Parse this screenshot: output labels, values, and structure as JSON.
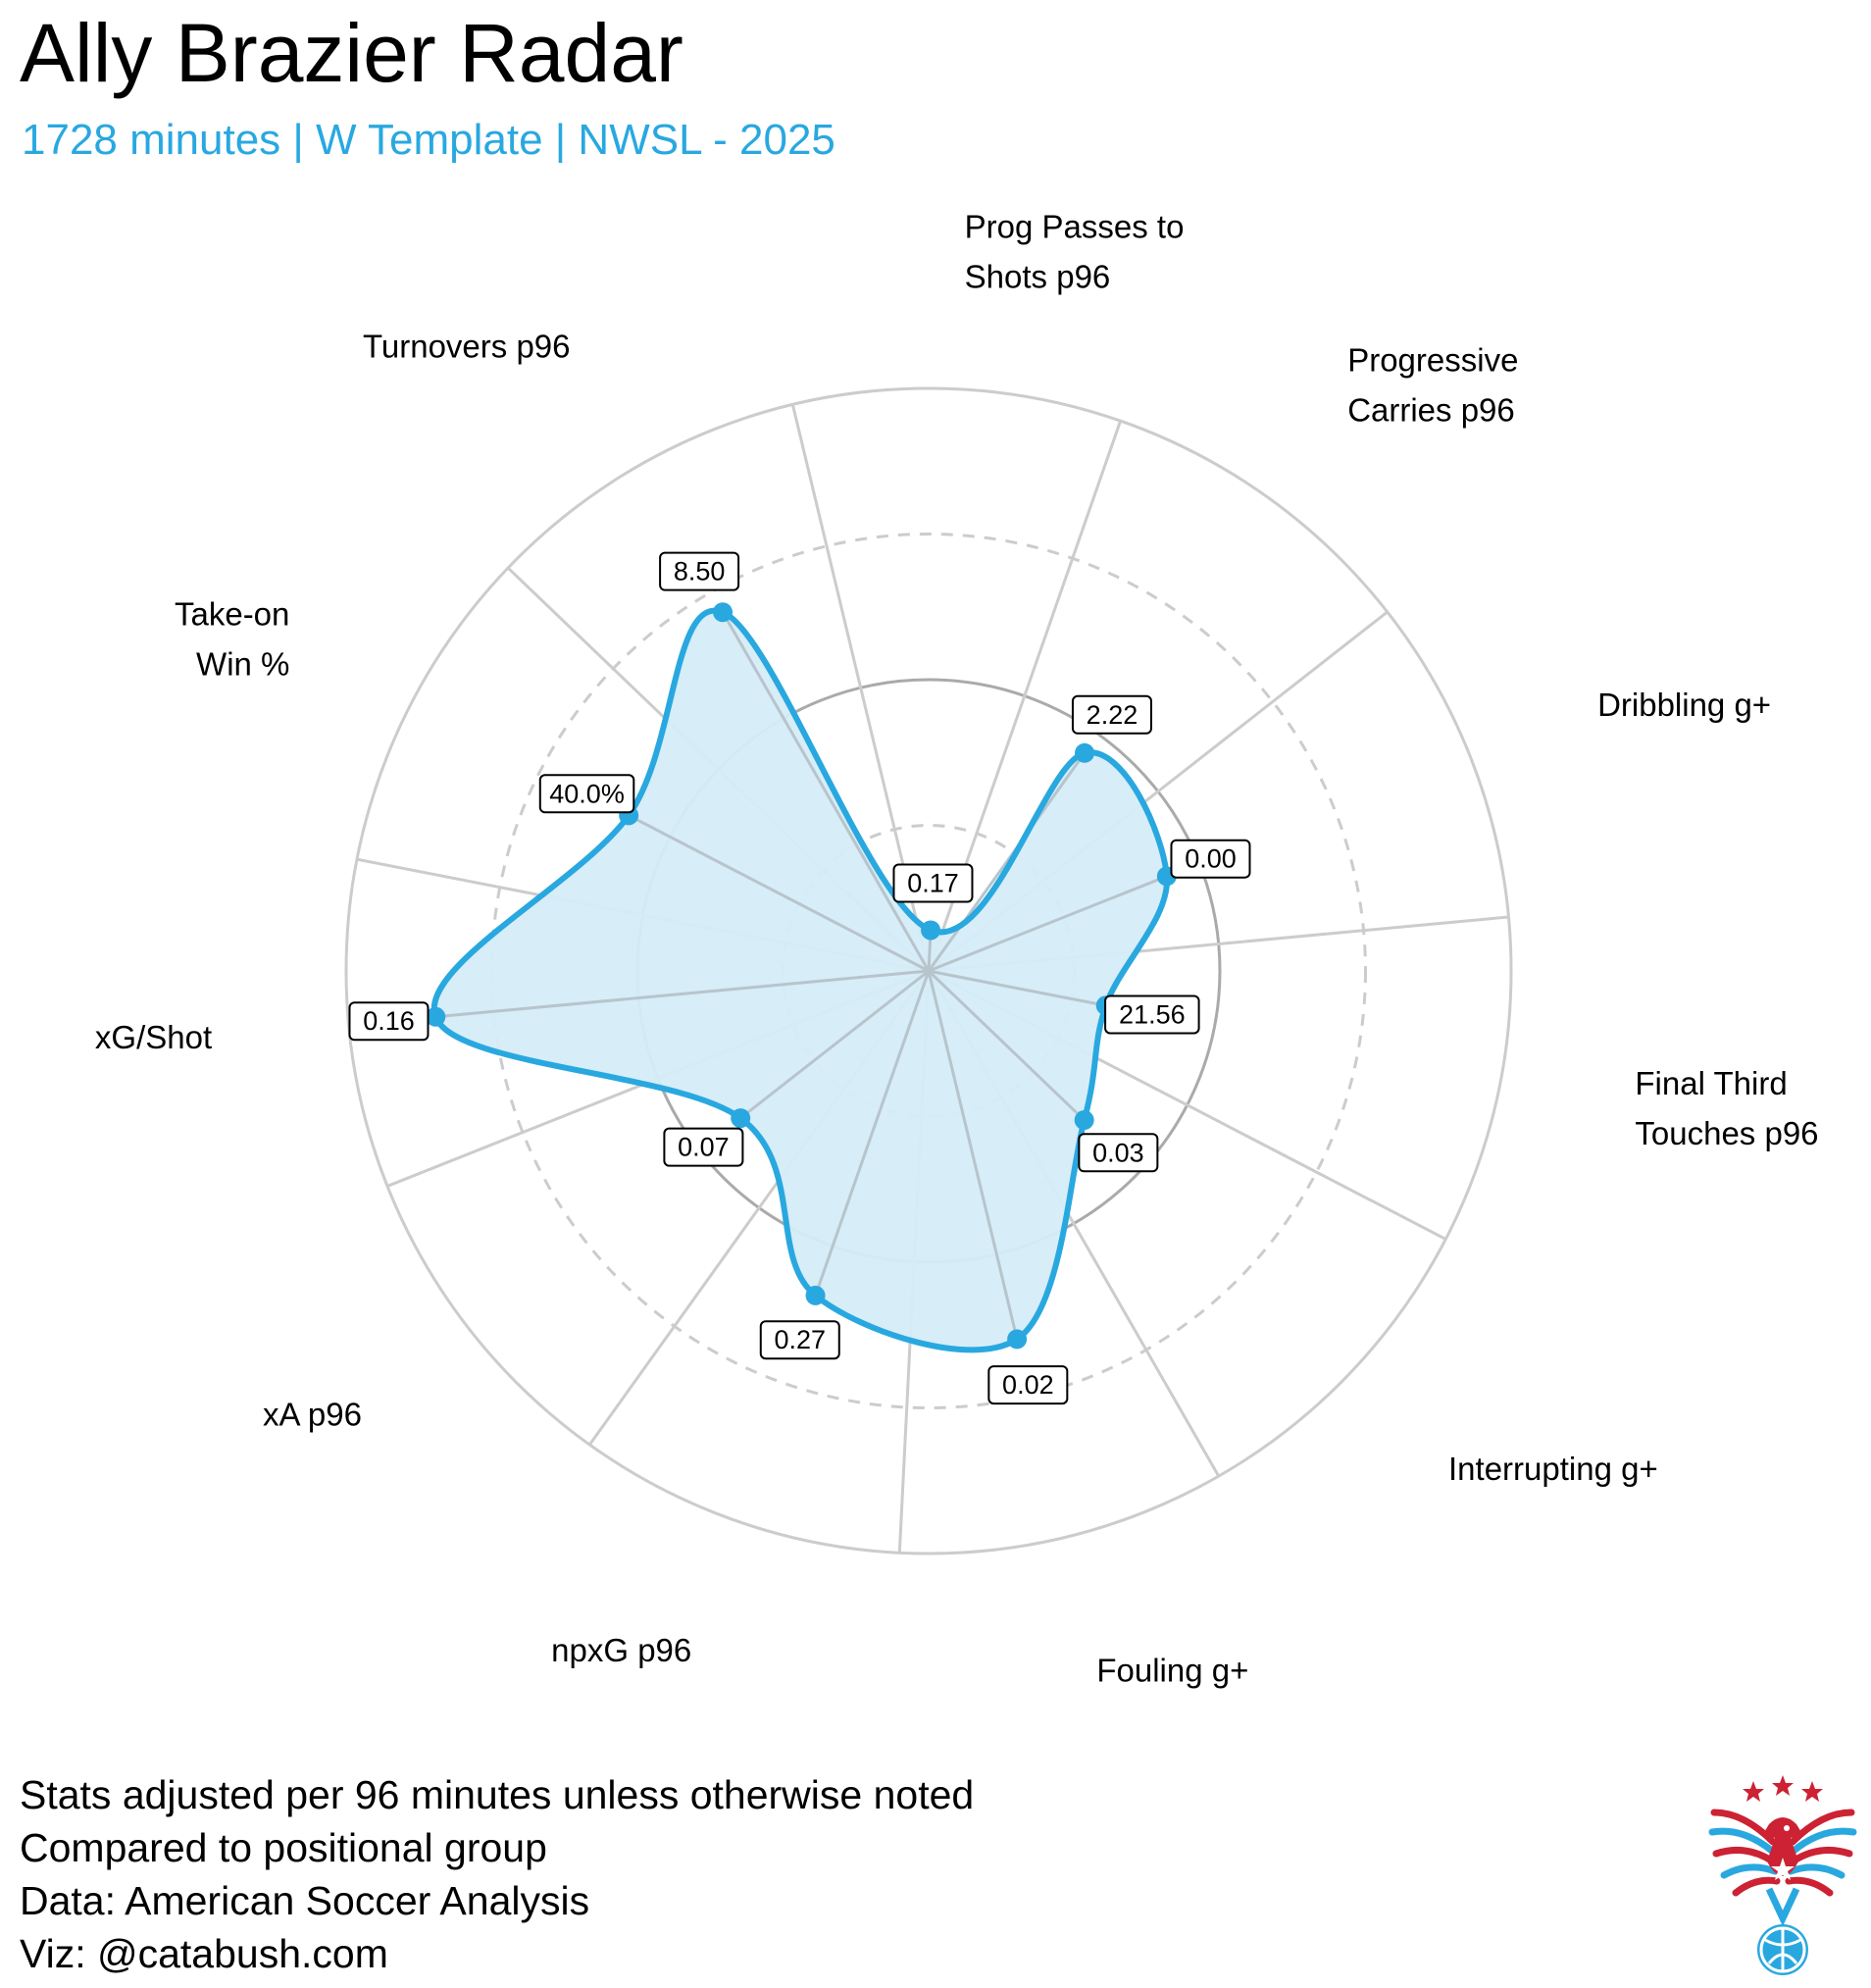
{
  "title": "Ally Brazier Radar",
  "subtitle": "1728 minutes | W Template | NWSL - 2025",
  "notes": [
    "Stats adjusted per 96 minutes unless otherwise noted",
    "Compared to positional group",
    "Data: American Soccer Analysis",
    "Viz: @catabush.com"
  ],
  "colors": {
    "accent": "#29a8e0",
    "fill": "#d5ecf7",
    "grid": "#cccccc",
    "inner_ring": "#aaaaaa",
    "logo_red": "#cc2233",
    "logo_blue": "#29a8e0"
  },
  "logo": {
    "icon": "eagle-soccer-ball-logo"
  },
  "chart_data": {
    "type": "radar",
    "metrics": [
      {
        "label": "Prog Passes to Shots p96",
        "label_lines": [
          "Prog Passes to",
          "Shots p96"
        ],
        "value": "0.17",
        "percentile": 7
      },
      {
        "label": "Progressive Carries p96",
        "label_lines": [
          "Progressive",
          "Carries p96"
        ],
        "value": "2.22",
        "percentile": 46
      },
      {
        "label": "Dribbling g+",
        "label_lines": [
          "Dribbling g+"
        ],
        "value": "0.00",
        "percentile": 44
      },
      {
        "label": "Final Third Touches p96",
        "label_lines": [
          "Final Third",
          "Touches p96"
        ],
        "value": "21.56",
        "percentile": 31
      },
      {
        "label": "Interrupting g+",
        "label_lines": [
          "Interrupting g+"
        ],
        "value": "0.03",
        "percentile": 37
      },
      {
        "label": "Fouling g+",
        "label_lines": [
          "Fouling g+"
        ],
        "value": "0.02",
        "percentile": 65
      },
      {
        "label": "npxG p96",
        "label_lines": [
          "npxG p96"
        ],
        "value": "0.27",
        "percentile": 59
      },
      {
        "label": "xA p96",
        "label_lines": [
          "xA p96"
        ],
        "value": "0.07",
        "percentile": 41
      },
      {
        "label": "xG/Shot",
        "label_lines": [
          "xG/Shot"
        ],
        "value": "0.16",
        "percentile": 85
      },
      {
        "label": "Take-on Win %",
        "label_lines": [
          "Take-on",
          "Win %"
        ],
        "value": "40.0%",
        "percentile": 58
      },
      {
        "label": "Turnovers p96",
        "label_lines": [
          "Turnovers p96"
        ],
        "value": "8.50",
        "percentile": 71
      }
    ],
    "scale": [
      0,
      100
    ],
    "reference_rings": [
      25,
      50,
      75,
      100
    ],
    "grid": true,
    "legend": "none"
  }
}
